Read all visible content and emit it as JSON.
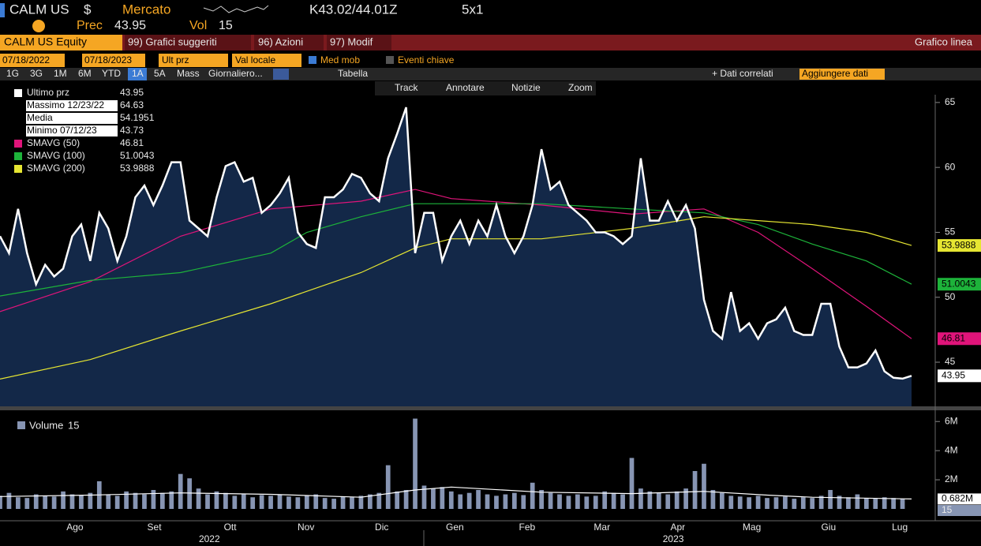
{
  "header": {
    "ticker": "CALM US",
    "currency": "$",
    "market": "Mercato",
    "quote": "K43.02/44.01Z",
    "size": "5x1",
    "prev_label": "Prec",
    "prev": 43.95,
    "vol_label": "Vol",
    "vol": 15
  },
  "toolbar": {
    "security": "CALM US Equity",
    "menus": [
      "99) Grafici suggeriti",
      "96) Azioni",
      "97) Modif"
    ],
    "chart_kind": "Grafico linea"
  },
  "settings": {
    "start": "07/18/2022",
    "end": "07/18/2023",
    "field": "Ult prz",
    "currency": "Val locale",
    "options": [
      "Med mob",
      "Eventi chiave"
    ]
  },
  "periods": [
    "1G",
    "3G",
    "1M",
    "6M",
    "YTD",
    "1A",
    "5A",
    "Mass"
  ],
  "frequency": "Giornaliero...",
  "table": "Tabella",
  "related": "+ Dati correlati",
  "add_data": "Aggiungere dati",
  "tools": [
    "Track",
    "Annotare",
    "Notizie",
    "Zoom"
  ],
  "chart_data": [
    {
      "type": "line",
      "stats": [
        {
          "label": "Massimo 12/23/22",
          "value": 64.63
        },
        {
          "label": "Media",
          "value": 54.1951
        },
        {
          "label": "Minimo 07/12/23",
          "value": 43.73
        }
      ],
      "xlim": [
        0,
        101
      ],
      "ylim": [
        41.6,
        65.6
      ],
      "yticks": [
        45,
        50,
        55,
        60,
        65
      ],
      "xticks": [
        {
          "value": 8.3,
          "label": "Ago"
        },
        {
          "value": 17.1,
          "label": "Set"
        },
        {
          "value": 25.5,
          "label": "Ott"
        },
        {
          "value": 33.9,
          "label": "Nov"
        },
        {
          "value": 42.3,
          "label": "Dic"
        },
        {
          "value": 50.4,
          "label": "Gen"
        },
        {
          "value": 58.4,
          "label": "Feb"
        },
        {
          "value": 66.7,
          "label": "Mar"
        },
        {
          "value": 75.1,
          "label": "Apr"
        },
        {
          "value": 83.3,
          "label": "Mag"
        },
        {
          "value": 91.8,
          "label": "Giu"
        },
        {
          "value": 99.7,
          "label": "Lug"
        }
      ],
      "years": [
        {
          "value": 23.2,
          "label": "2022"
        },
        {
          "value": 74.6,
          "label": "2023"
        }
      ],
      "series": [
        {
          "name": "Ultimo prz",
          "color": "#ffffff",
          "values": [
            54.7,
            53.4,
            56.8,
            53.4,
            51.0,
            52.5,
            51.6,
            52.2,
            54.7,
            55.6,
            52.8,
            56.5,
            55.3,
            52.8,
            54.7,
            57.7,
            58.6,
            57.1,
            58.6,
            60.4,
            60.4,
            55.9,
            55.3,
            54.7,
            57.7,
            60.1,
            60.4,
            58.9,
            59.2,
            56.5,
            57.1,
            58.0,
            59.2,
            55.0,
            54.1,
            53.8,
            57.7,
            57.7,
            58.3,
            59.5,
            59.2,
            58.0,
            57.4,
            60.7,
            62.6,
            64.63,
            53.4,
            56.5,
            56.5,
            52.8,
            54.7,
            55.9,
            54.1,
            55.9,
            54.7,
            57.1,
            54.7,
            53.4,
            54.7,
            57.1,
            61.4,
            58.3,
            58.9,
            57.1,
            56.5,
            55.9,
            55.0,
            55.0,
            54.7,
            54.1,
            54.7,
            60.7,
            55.9,
            55.9,
            57.4,
            55.9,
            57.1,
            55.3,
            49.8,
            47.4,
            46.8,
            50.4,
            47.4,
            48.0,
            46.8,
            48.0,
            48.3,
            49.2,
            47.4,
            47.1,
            47.1,
            49.5,
            49.5,
            46.2,
            44.6,
            44.6,
            44.9,
            45.9,
            44.3,
            43.8,
            43.73,
            43.95
          ]
        },
        {
          "name": "SMAVG (50)",
          "color": "#e0147a",
          "x": [
            0,
            10,
            20,
            30,
            40,
            46,
            50,
            60,
            70,
            78,
            84,
            90,
            96,
            101
          ],
          "values": [
            48.9,
            51.2,
            54.7,
            56.8,
            57.4,
            58.3,
            57.6,
            57.1,
            56.4,
            56.8,
            55.0,
            52.2,
            49.3,
            46.81
          ]
        },
        {
          "name": "SMAVG (100)",
          "color": "#1db33a",
          "x": [
            0,
            10,
            20,
            30,
            34,
            40,
            46,
            60,
            70,
            78,
            84,
            90,
            96,
            101
          ],
          "values": [
            50.1,
            51.3,
            51.9,
            53.4,
            55.0,
            56.2,
            57.2,
            57.2,
            56.8,
            56.5,
            55.6,
            54.1,
            52.8,
            51.0043
          ]
        },
        {
          "name": "SMAVG (200)",
          "color": "#e6e632",
          "x": [
            0,
            10,
            20,
            30,
            40,
            46,
            50,
            60,
            70,
            78,
            84,
            90,
            96,
            101
          ],
          "values": [
            43.7,
            45.2,
            47.4,
            49.5,
            51.9,
            53.8,
            54.5,
            54.5,
            55.3,
            56.2,
            55.9,
            55.6,
            55.0,
            53.9888
          ]
        }
      ]
    },
    {
      "type": "bar",
      "xlim": [
        0,
        101
      ],
      "ylim": [
        0,
        6500000
      ],
      "yticks": [
        {
          "value": 2000000,
          "label": "2M"
        },
        {
          "value": 4000000,
          "label": "4M"
        },
        {
          "value": 6000000,
          "label": "6M"
        }
      ],
      "last_label": {
        "value": 682000,
        "label": "0.682M"
      },
      "series": [
        {
          "name": "Volume",
          "color": "#8795b3",
          "values": [
            900000,
            1100000,
            800000,
            750000,
            1000000,
            900000,
            850000,
            1200000,
            1000000,
            950000,
            1100000,
            1900000,
            1000000,
            900000,
            1200000,
            1100000,
            1000000,
            1300000,
            1100000,
            1200000,
            2400000,
            2100000,
            1400000,
            1000000,
            1200000,
            1100000,
            900000,
            1000000,
            800000,
            950000,
            900000,
            1000000,
            850000,
            800000,
            900000,
            1000000,
            750000,
            700000,
            850000,
            800000,
            900000,
            1000000,
            1100000,
            3000000,
            1200000,
            1300000,
            6200000,
            1600000,
            1400000,
            1500000,
            1200000,
            1000000,
            1100000,
            1300000,
            1000000,
            900000,
            1000000,
            1100000,
            950000,
            1800000,
            1300000,
            1100000,
            1000000,
            900000,
            1000000,
            850000,
            900000,
            1200000,
            1100000,
            1000000,
            3500000,
            1400000,
            1200000,
            1100000,
            1000000,
            1200000,
            1400000,
            2600000,
            3100000,
            1300000,
            1100000,
            900000,
            850000,
            800000,
            900000,
            750000,
            800000,
            850000,
            700000,
            800000,
            750000,
            900000,
            1300000,
            900000,
            800000,
            1000000,
            750000,
            700000,
            800000,
            750000,
            700000,
            15
          ]
        },
        {
          "type": "line",
          "color": "#ffffff",
          "x": [
            0,
            10,
            20,
            30,
            40,
            46,
            50,
            60,
            70,
            78,
            85,
            90,
            101
          ],
          "values": [
            850000,
            950000,
            1100000,
            1000000,
            800000,
            1300000,
            1500000,
            1150000,
            1050000,
            1200000,
            950000,
            800000,
            682000
          ]
        }
      ]
    }
  ]
}
